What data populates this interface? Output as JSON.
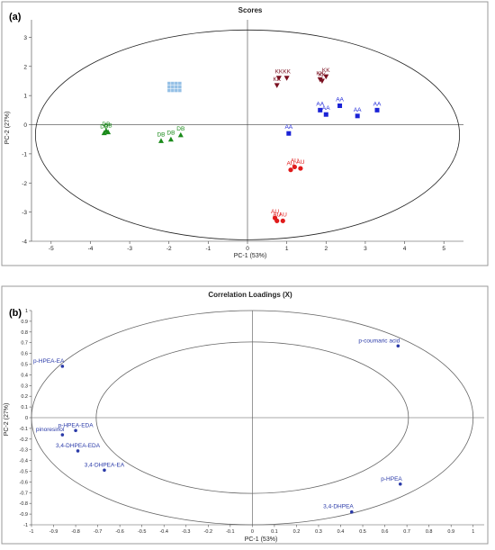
{
  "chart_data": [
    {
      "panel_label": "(a)",
      "title": "Scores",
      "type": "scatter",
      "xlabel": "PC-1 (53%)",
      "ylabel": "PC-2 (27%)",
      "xlim": [
        -5.5,
        5.5
      ],
      "ylim": [
        -4,
        3.6
      ],
      "xticks": [
        -5,
        -4,
        -3,
        -2,
        -1,
        0,
        1,
        2,
        3,
        4,
        5
      ],
      "yticks": [
        -4,
        -3,
        -2,
        -1,
        0,
        1,
        2,
        3
      ],
      "ellipse": {
        "cx": 0,
        "cy": -0.35,
        "rx": 5.4,
        "ry": 3.6
      },
      "series": [
        {
          "label": "KK",
          "color": "#7a1020",
          "marker": "triangle-down",
          "points": [
            [
              0.8,
              1.6
            ],
            [
              1.0,
              1.6
            ],
            [
              0.75,
              1.35
            ],
            [
              1.85,
              1.55
            ],
            [
              2.0,
              1.65
            ],
            [
              1.9,
              1.5
            ]
          ]
        },
        {
          "label": "AA",
          "color": "#1a22d6",
          "marker": "square",
          "points": [
            [
              1.05,
              -0.3
            ],
            [
              1.85,
              0.5
            ],
            [
              2.0,
              0.35
            ],
            [
              2.35,
              0.65
            ],
            [
              2.8,
              0.3
            ],
            [
              3.3,
              0.5
            ]
          ]
        },
        {
          "label": "DB",
          "color": "#1a8a1a",
          "marker": "triangle-up",
          "points": [
            [
              -3.6,
              -0.2
            ],
            [
              -3.65,
              -0.28
            ],
            [
              -3.55,
              -0.25
            ],
            [
              -2.2,
              -0.55
            ],
            [
              -1.95,
              -0.5
            ],
            [
              -1.7,
              -0.35
            ]
          ]
        },
        {
          "label": "AU",
          "color": "#e01a1a",
          "marker": "circle",
          "points": [
            [
              1.1,
              -1.55
            ],
            [
              1.2,
              -1.45
            ],
            [
              1.35,
              -1.5
            ],
            [
              0.75,
              -3.3
            ],
            [
              0.9,
              -3.3
            ],
            [
              0.7,
              -3.2
            ]
          ]
        }
      ],
      "faded_cluster": {
        "color": "#7ab0e0",
        "center": [
          -1.9,
          1.35
        ],
        "count": 12
      }
    },
    {
      "panel_label": "(b)",
      "title": "Correlation Loadings (X)",
      "type": "scatter",
      "xlabel": "PC-1 (53%)",
      "ylabel": "PC-2 (27%)",
      "xlim": [
        -1,
        1.05
      ],
      "ylim": [
        -1,
        1
      ],
      "xticks": [
        -1,
        -0.9,
        -0.8,
        -0.7,
        -0.6,
        -0.5,
        -0.4,
        -0.3,
        -0.2,
        -0.1,
        0,
        0.1,
        0.2,
        0.3,
        0.4,
        0.5,
        0.6,
        0.7,
        0.8,
        0.9,
        1
      ],
      "yticks": [
        1,
        0.9,
        0.8,
        0.7,
        0.6,
        0.5,
        0.4,
        0.3,
        0.2,
        0.1,
        0,
        -0.1,
        -0.2,
        -0.3,
        -0.4,
        -0.5,
        -0.6,
        -0.7,
        -0.8,
        -0.9,
        -1
      ],
      "circles": [
        1.0,
        0.7071
      ],
      "color": "#2a3aa8",
      "points": [
        {
          "label": "p-HPEA-EA",
          "x": -0.86,
          "y": 0.48,
          "label_pos": "above-left"
        },
        {
          "label": "p-coumaric acid",
          "x": 0.66,
          "y": 0.67,
          "label_pos": "above-left"
        },
        {
          "label": "p-HPEA-EDA",
          "x": -0.8,
          "y": -0.12,
          "label_pos": "above"
        },
        {
          "label": "pinoresinol",
          "x": -0.86,
          "y": -0.16,
          "label_pos": "above-left"
        },
        {
          "label": "3,4-DHPEA-EDA",
          "x": -0.79,
          "y": -0.31,
          "label_pos": "above"
        },
        {
          "label": "3,4-DHPEA-EA",
          "x": -0.67,
          "y": -0.49,
          "label_pos": "above"
        },
        {
          "label": "p-HPEA",
          "x": 0.67,
          "y": -0.62,
          "label_pos": "above-left"
        },
        {
          "label": "3,4-DHPEA",
          "x": 0.45,
          "y": -0.88,
          "label_pos": "above-left"
        }
      ]
    }
  ]
}
